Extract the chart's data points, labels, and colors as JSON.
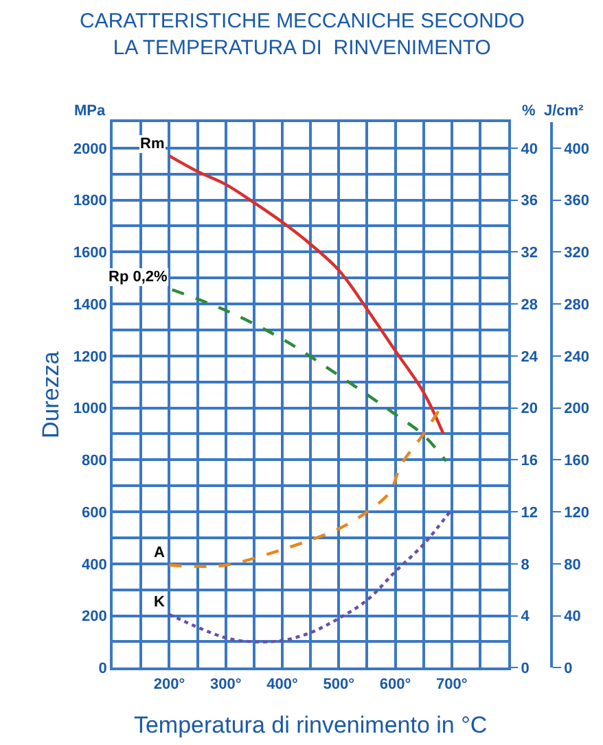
{
  "chart_data": {
    "type": "line",
    "title": "CARATTERISTICHE MECCANICHE SECONDO\nLA TEMPERATURA DI  RINVENIMENTO",
    "xlabel": "Temperatura di rinvenimento in °C",
    "ylabel": "Durezza",
    "y2label": "%",
    "y3label": "J/cm²",
    "annotations": [
      "MPa"
    ],
    "xlim": [
      100,
      800
    ],
    "xticks": [
      {
        "value": 100,
        "label": null
      },
      {
        "value": 150,
        "label": null
      },
      {
        "value": 200,
        "label": "200°"
      },
      {
        "value": 250,
        "label": null
      },
      {
        "value": 300,
        "label": "300°"
      },
      {
        "value": 350,
        "label": null
      },
      {
        "value": 400,
        "label": "400°"
      },
      {
        "value": 450,
        "label": null
      },
      {
        "value": 500,
        "label": "500°"
      },
      {
        "value": 550,
        "label": null
      },
      {
        "value": 600,
        "label": "600°"
      },
      {
        "value": 650,
        "label": null
      },
      {
        "value": 700,
        "label": "700°"
      },
      {
        "value": 750,
        "label": null
      },
      {
        "value": 800,
        "label": null
      }
    ],
    "ylim": [
      0,
      2100
    ],
    "yticks": [
      0,
      {
        "value": 100,
        "label": null
      },
      200,
      {
        "value": 300,
        "label": null
      },
      400,
      {
        "value": 500,
        "label": null
      },
      600,
      {
        "value": 700,
        "label": null
      },
      800,
      {
        "value": 900,
        "label": null
      },
      1000,
      {
        "value": 1100,
        "label": null
      },
      1200,
      {
        "value": 1300,
        "label": null
      },
      1400,
      {
        "value": 1500,
        "label": null
      },
      1600,
      {
        "value": 1700,
        "label": null
      },
      1800,
      {
        "value": 1900,
        "label": null
      },
      2000
    ],
    "y2lim": [
      0,
      42
    ],
    "y2ticks": [
      0,
      4,
      8,
      12,
      16,
      20,
      24,
      28,
      32,
      36,
      40
    ],
    "y3lim": [
      0,
      420
    ],
    "y3ticks": [
      0,
      40,
      80,
      120,
      160,
      200,
      240,
      280,
      320,
      360,
      400
    ],
    "grid": true,
    "legend": false,
    "marker": "none",
    "series": [
      {
        "name": "Rm",
        "color": "#d8302f",
        "line_style": "solid",
        "x": [
          200,
          250,
          300,
          350,
          400,
          450,
          500,
          550,
          600,
          650,
          685
        ],
        "values": [
          1970,
          1910,
          1860,
          1790,
          1715,
          1630,
          1530,
          1380,
          1220,
          1060,
          900
        ]
      },
      {
        "name": "Rp 0,2%",
        "color": "#2e8b3a",
        "line_style": "dashed",
        "x": [
          205,
          300,
          400,
          500,
          600,
          650,
          690
        ],
        "values": [
          1455,
          1375,
          1265,
          1125,
          975,
          895,
          795
        ]
      },
      {
        "name": "A",
        "color": "#e8861e",
        "line_style": "dashed",
        "axis": "y2",
        "x": [
          200,
          250,
          300,
          400,
          500,
          550,
          590,
          610,
          650,
          680
        ],
        "values": [
          7.9,
          7.8,
          7.9,
          9.1,
          10.7,
          12.0,
          13.5,
          15.6,
          18.0,
          20.0
        ]
      },
      {
        "name": "K",
        "color": "#6a4fa8",
        "line_style": "dotted",
        "axis": "y3",
        "x": [
          200,
          300,
          350,
          400,
          450,
          500,
          550,
          600,
          650,
          700
        ],
        "values": [
          41,
          23,
          20,
          21,
          27,
          38,
          52,
          74,
          95,
          122
        ]
      }
    ]
  }
}
